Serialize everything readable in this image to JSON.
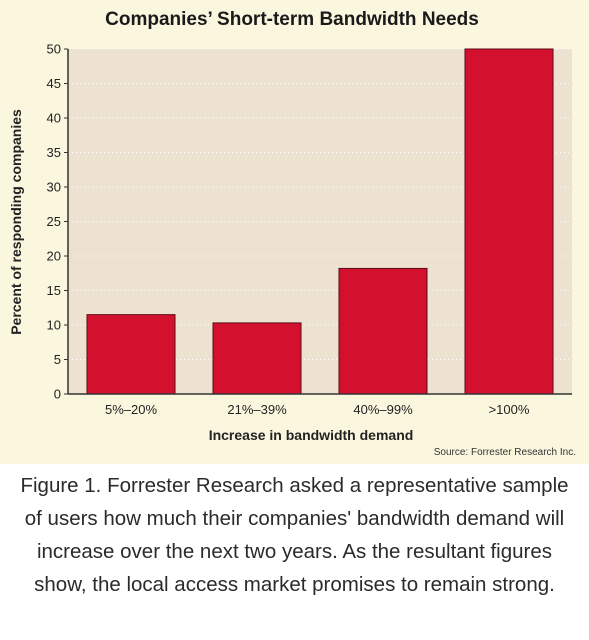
{
  "chart_data": {
    "type": "bar",
    "title": "Companies’ Short-term Bandwidth Needs",
    "xlabel": "Increase in bandwidth demand",
    "ylabel": "Percent of responding companies",
    "categories": [
      "5%–20%",
      "21%–39%",
      "40%–99%",
      ">100%"
    ],
    "values": [
      11.5,
      10.3,
      18.2,
      50
    ],
    "ylim": [
      0,
      50
    ],
    "yticks": [
      0,
      5,
      10,
      15,
      20,
      25,
      30,
      35,
      40,
      45,
      50
    ],
    "grid": true,
    "source": "Source: Forrester Research Inc."
  },
  "colors": {
    "bar": "#d4102f",
    "plot_background": "#ede1cf",
    "panel_background": "#fbf7df",
    "grid": "#ffffff"
  },
  "caption": "Figure 1. Forrester Research asked a representative sample of users how much their companies' bandwidth demand will increase over the next two years. As the resultant figures show, the local access market promises to remain strong."
}
